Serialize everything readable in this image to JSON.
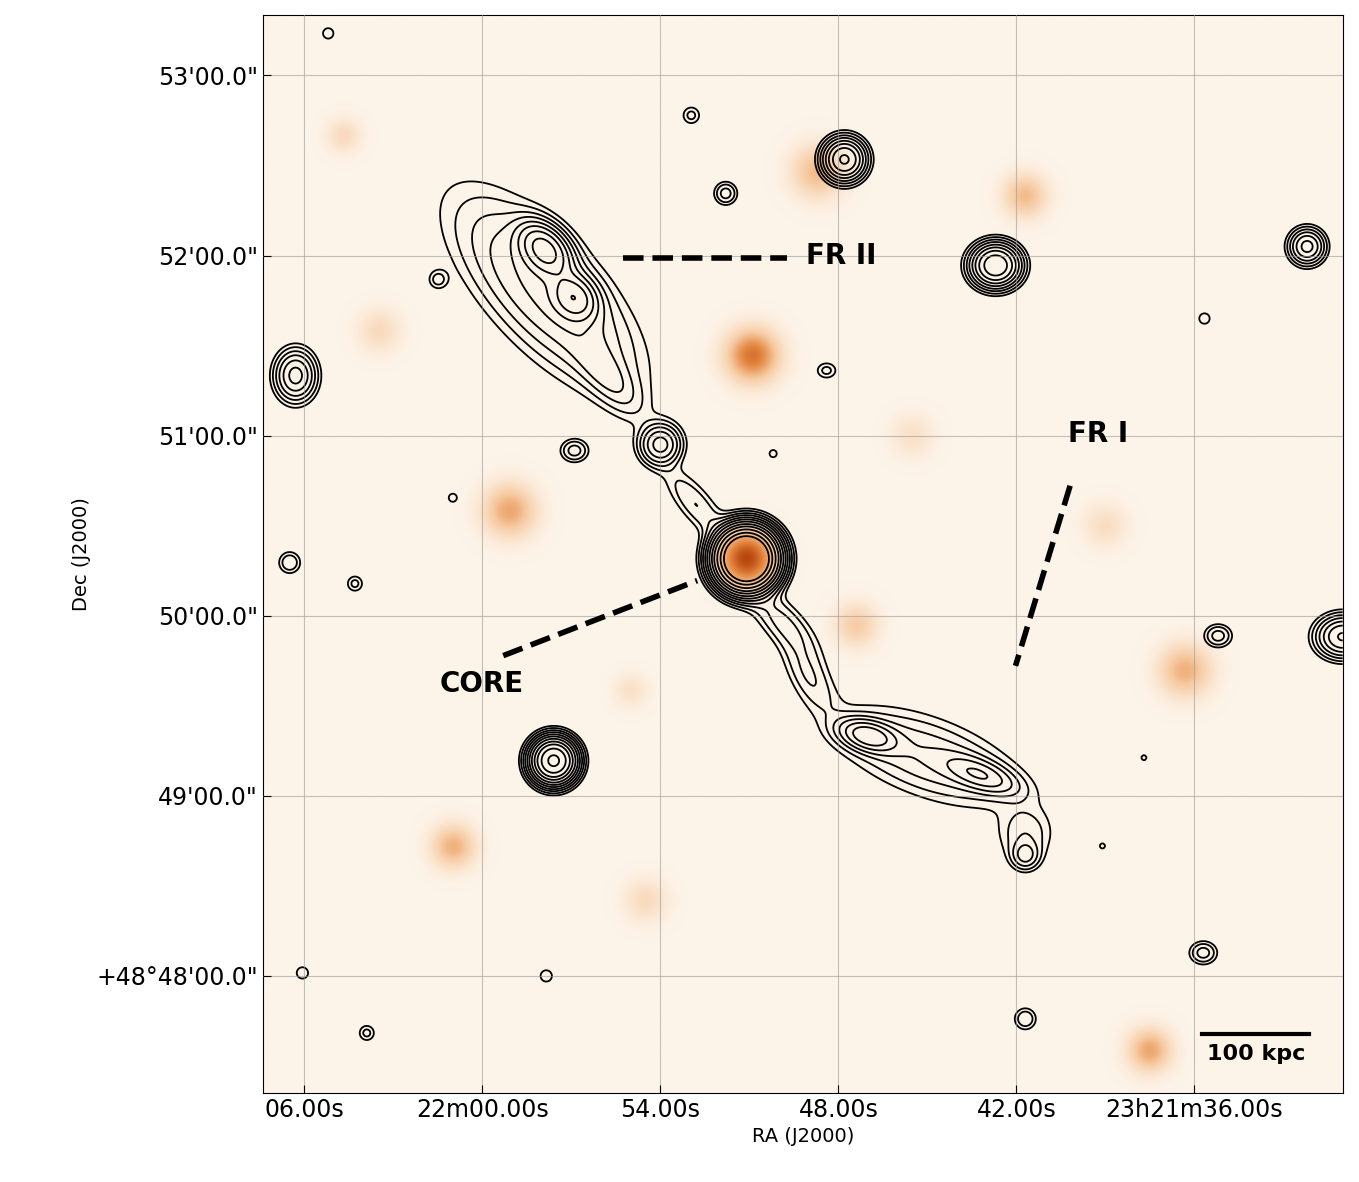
{
  "chart_data": {
    "type": "contour",
    "xlabel": "RA (J2000)",
    "ylabel": "Dec (J2000)",
    "xlim": [
      127.4,
      91.0
    ],
    "ylim": [
      -39,
      320
    ],
    "xticks": [
      {
        "value": 126,
        "label": "06.00s"
      },
      {
        "value": 120,
        "label": "22m00.00s"
      },
      {
        "value": 114,
        "label": "54.00s"
      },
      {
        "value": 108,
        "label": "48.00s"
      },
      {
        "value": 102,
        "label": "42.00s"
      },
      {
        "value": 96,
        "label": "23h21m36.00s"
      }
    ],
    "yticks": [
      {
        "value": 0,
        "label": "+48°48'00.0\""
      },
      {
        "value": 60,
        "label": "49'00.0\""
      },
      {
        "value": 120,
        "label": "50'00.0\""
      },
      {
        "value": 180,
        "label": "51'00.0\""
      },
      {
        "value": 240,
        "label": "52'00.0\""
      },
      {
        "value": 300,
        "label": "53'00.0\""
      }
    ],
    "grid": true,
    "color": "#000000",
    "colors": [
      "#fdf4e9",
      "#f6c9a0",
      "#e3843e",
      "#b8470f"
    ],
    "contour_levels": [
      0.15,
      0.25,
      0.4,
      0.6,
      0.9,
      1.3,
      1.9,
      2.8,
      4.0,
      6.0,
      9.0,
      13.0
    ],
    "radio_components": [
      {
        "x": 117.9,
        "y": 228,
        "sigma_major": 24,
        "sigma_minor": 10,
        "angle": -47,
        "peak": 1.0
      },
      {
        "x": 117.9,
        "y": 242,
        "sigma_major": 6,
        "sigma_minor": 4,
        "angle": -47,
        "peak": 3.0
      },
      {
        "x": 116.9,
        "y": 226,
        "sigma_major": 5,
        "sigma_minor": 4,
        "angle": -47,
        "peak": 2.0
      },
      {
        "x": 115.8,
        "y": 200,
        "sigma_major": 10,
        "sigma_minor": 4,
        "angle": -50,
        "peak": 0.5
      },
      {
        "x": 114.0,
        "y": 177,
        "sigma_major": 4,
        "sigma_minor": 4,
        "angle": 0,
        "peak": 1.5
      },
      {
        "x": 112.8,
        "y": 157,
        "sigma_major": 10,
        "sigma_minor": 3.5,
        "angle": -50,
        "peak": 0.4
      },
      {
        "x": 111.1,
        "y": 139,
        "sigma_major": 5,
        "sigma_minor": 5,
        "angle": 0,
        "peak": 40.0
      },
      {
        "x": 109.9,
        "y": 118,
        "sigma_major": 10,
        "sigma_minor": 4,
        "angle": -45,
        "peak": 0.45
      },
      {
        "x": 109.0,
        "y": 100,
        "sigma_major": 9,
        "sigma_minor": 4,
        "angle": -60,
        "peak": 0.4
      },
      {
        "x": 107.0,
        "y": 80,
        "sigma_major": 6,
        "sigma_minor": 3,
        "angle": -15,
        "peak": 1.5
      },
      {
        "x": 105.0,
        "y": 73,
        "sigma_major": 20,
        "sigma_minor": 8,
        "angle": -20,
        "peak": 0.6
      },
      {
        "x": 103.2,
        "y": 67,
        "sigma_major": 8,
        "sigma_minor": 3,
        "angle": -20,
        "peak": 1.0
      },
      {
        "x": 101.7,
        "y": 47,
        "sigma_major": 6,
        "sigma_minor": 6,
        "angle": 0,
        "peak": 0.35
      },
      {
        "x": 101.7,
        "y": 40,
        "sigma_major": 3,
        "sigma_minor": 3,
        "angle": 0,
        "peak": 0.6
      },
      {
        "x": 107.8,
        "y": 272,
        "sigma_major": 4,
        "sigma_minor": 4,
        "angle": 0,
        "peak": 3.0
      },
      {
        "x": 102.7,
        "y": 236.7,
        "sigma_major": 4.5,
        "sigma_minor": 4,
        "angle": 0,
        "peak": 4.0
      },
      {
        "x": 92.2,
        "y": 243,
        "sigma_major": 3.5,
        "sigma_minor": 3.5,
        "angle": 0,
        "peak": 1.5
      },
      {
        "x": 126.3,
        "y": 200,
        "sigma_major": 5,
        "sigma_minor": 4,
        "angle": 90,
        "peak": 1.5
      },
      {
        "x": 117.6,
        "y": 71.7,
        "sigma_major": 4,
        "sigma_minor": 4,
        "angle": 0,
        "peak": 10.0
      },
      {
        "x": 111.8,
        "y": 260.7,
        "sigma_major": 2.5,
        "sigma_minor": 2.5,
        "angle": 0,
        "peak": 0.5
      },
      {
        "x": 112.96,
        "y": 286.7,
        "sigma_major": 2.2,
        "sigma_minor": 2.2,
        "angle": 0,
        "peak": 0.3
      },
      {
        "x": 121.5,
        "y": 232,
        "sigma_major": 2.2,
        "sigma_minor": 2.2,
        "angle": 0,
        "peak": 0.3
      },
      {
        "x": 116.9,
        "y": 175,
        "sigma_major": 3,
        "sigma_minor": 2.5,
        "angle": 0,
        "peak": 0.5
      },
      {
        "x": 126.5,
        "y": 137.7,
        "sigma_major": 2.5,
        "sigma_minor": 2.5,
        "angle": 0,
        "peak": 0.4
      },
      {
        "x": 124.3,
        "y": 130.7,
        "sigma_major": 2,
        "sigma_minor": 2,
        "angle": 0,
        "peak": 0.3
      },
      {
        "x": 121.0,
        "y": 159.3,
        "sigma_major": 1.8,
        "sigma_minor": 1.8,
        "angle": 0,
        "peak": 0.2
      },
      {
        "x": 95.2,
        "y": 113.3,
        "sigma_major": 3,
        "sigma_minor": 2.5,
        "angle": 0,
        "peak": 0.5
      },
      {
        "x": 95.7,
        "y": 7.7,
        "sigma_major": 3,
        "sigma_minor": 2.5,
        "angle": 0,
        "peak": 0.5
      },
      {
        "x": 101.7,
        "y": -14.3,
        "sigma_major": 2.5,
        "sigma_minor": 2.5,
        "angle": 0,
        "peak": 0.4
      },
      {
        "x": 117.85,
        "y": 0,
        "sigma_major": 2.5,
        "sigma_minor": 2.5,
        "angle": 0,
        "peak": 0.2
      },
      {
        "x": 126.07,
        "y": 1,
        "sigma_major": 2.5,
        "sigma_minor": 2.5,
        "angle": 0,
        "peak": 0.2
      },
      {
        "x": 123.9,
        "y": -19,
        "sigma_major": 2,
        "sigma_minor": 2,
        "angle": 0,
        "peak": 0.3
      },
      {
        "x": 95.66,
        "y": 219,
        "sigma_major": 2.3,
        "sigma_minor": 2.3,
        "angle": 0,
        "peak": 0.2
      },
      {
        "x": 125.2,
        "y": 314,
        "sigma_major": 2.3,
        "sigma_minor": 2.3,
        "angle": 0,
        "peak": 0.2
      },
      {
        "x": 91.0,
        "y": 113,
        "sigma_major": 5,
        "sigma_minor": 4,
        "angle": 0,
        "peak": 2.0
      },
      {
        "x": 108.4,
        "y": 201.7,
        "sigma_major": 2.5,
        "sigma_minor": 2,
        "angle": 0,
        "peak": 0.3
      },
      {
        "x": 110.2,
        "y": 174,
        "sigma_major": 1.6,
        "sigma_minor": 1.6,
        "angle": 0,
        "peak": 0.2
      },
      {
        "x": 97.7,
        "y": 72.7,
        "sigma_major": 1.4,
        "sigma_minor": 1.4,
        "angle": 0,
        "peak": 0.18
      },
      {
        "x": 99.1,
        "y": 43.3,
        "sigma_major": 1.4,
        "sigma_minor": 1.4,
        "angle": 0,
        "peak": 0.18
      }
    ],
    "optical_components": [
      {
        "x": 111.1,
        "y": 139,
        "sigma": 6,
        "peak": 1.0
      },
      {
        "x": 110.9,
        "y": 206.7,
        "sigma": 6,
        "peak": 0.75
      },
      {
        "x": 119.1,
        "y": 155,
        "sigma": 6,
        "peak": 0.5
      },
      {
        "x": 108.7,
        "y": 268,
        "sigma": 6,
        "peak": 0.4
      },
      {
        "x": 101.7,
        "y": 260,
        "sigma": 5,
        "peak": 0.4
      },
      {
        "x": 121.0,
        "y": 43,
        "sigma": 5,
        "peak": 0.45
      },
      {
        "x": 96.3,
        "y": 101.7,
        "sigma": 6,
        "peak": 0.45
      },
      {
        "x": 97.5,
        "y": -25,
        "sigma": 5,
        "peak": 0.5
      },
      {
        "x": 107.4,
        "y": 116.7,
        "sigma": 5,
        "peak": 0.3
      },
      {
        "x": 124.7,
        "y": 280,
        "sigma": 4,
        "peak": 0.2
      },
      {
        "x": 105.5,
        "y": 180,
        "sigma": 5,
        "peak": 0.15
      },
      {
        "x": 123.5,
        "y": 215,
        "sigma": 5,
        "peak": 0.2
      },
      {
        "x": 114.5,
        "y": 25,
        "sigma": 5,
        "peak": 0.2
      },
      {
        "x": 99.0,
        "y": 150,
        "sigma": 5,
        "peak": 0.18
      },
      {
        "x": 115.0,
        "y": 95,
        "sigma": 4,
        "peak": 0.15
      }
    ],
    "annotations": [
      {
        "text": "FR II",
        "x": 109.1,
        "y": 240,
        "line": [
          [
            115.27,
            239.3
          ],
          [
            109.74,
            239.3
          ]
        ]
      },
      {
        "text": "FR I",
        "x": 100.25,
        "y": 180.7,
        "line": [
          [
            100.19,
            163.3
          ],
          [
            102.03,
            103.3
          ]
        ]
      },
      {
        "text": "CORE",
        "x": 120.03,
        "y": 97.3,
        "line": [
          [
            119.3,
            106.7
          ],
          [
            112.76,
            131.7
          ]
        ]
      },
      {
        "text": "100 kpc",
        "x": 93.93,
        "y": -26,
        "line": [
          [
            95.73,
            -19.3
          ],
          [
            92.14,
            -19.3
          ]
        ]
      }
    ]
  }
}
